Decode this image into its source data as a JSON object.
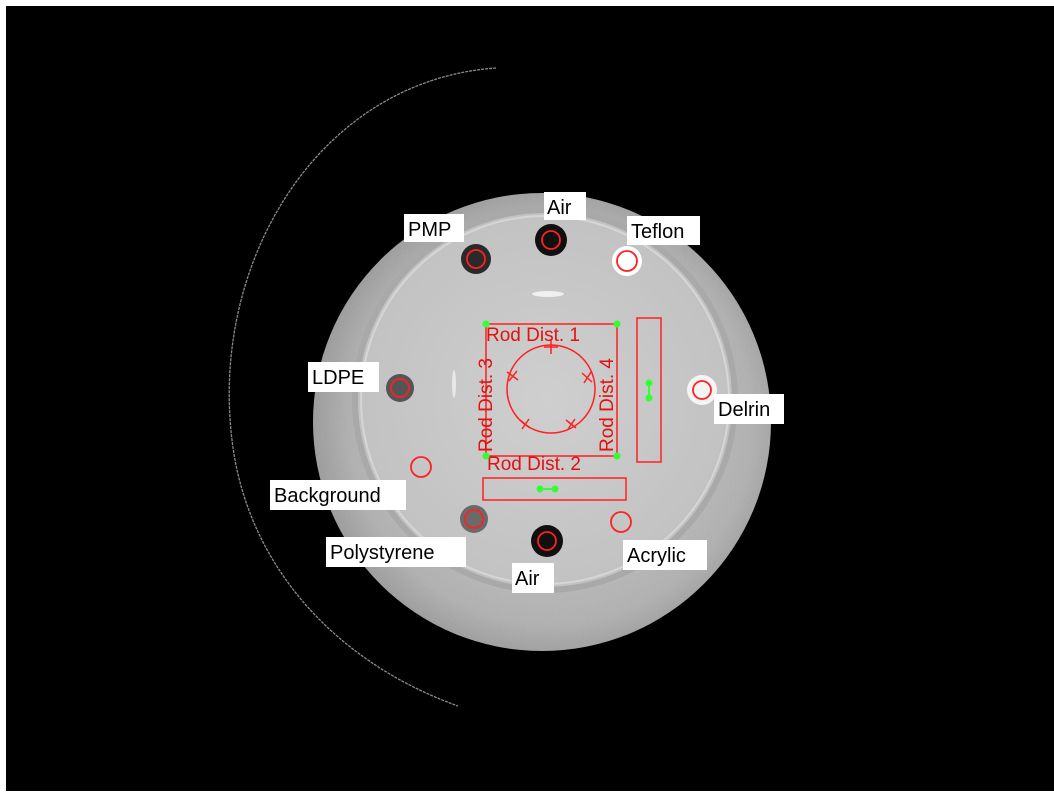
{
  "image_alt": "CT scan of a cylindrical phantom with material inserts and ROI overlays",
  "overlay_color": "#ff2020",
  "marker_color": "#33ff33",
  "inserts": [
    {
      "id": "pmp",
      "label": "PMP"
    },
    {
      "id": "air-top",
      "label": "Air"
    },
    {
      "id": "teflon",
      "label": "Teflon"
    },
    {
      "id": "ldpe",
      "label": "LDPE"
    },
    {
      "id": "delrin",
      "label": "Delrin"
    },
    {
      "id": "background",
      "label": "Background"
    },
    {
      "id": "polystyrene",
      "label": "Polystyrene"
    },
    {
      "id": "acrylic",
      "label": "Acrylic"
    },
    {
      "id": "air-bottom",
      "label": "Air"
    }
  ],
  "rod_distances": {
    "rod1": "Rod Dist. 1",
    "rod2": "Rod Dist. 2",
    "rod3": "Rod Dist. 3",
    "rod4": "Rod Dist. 4"
  }
}
